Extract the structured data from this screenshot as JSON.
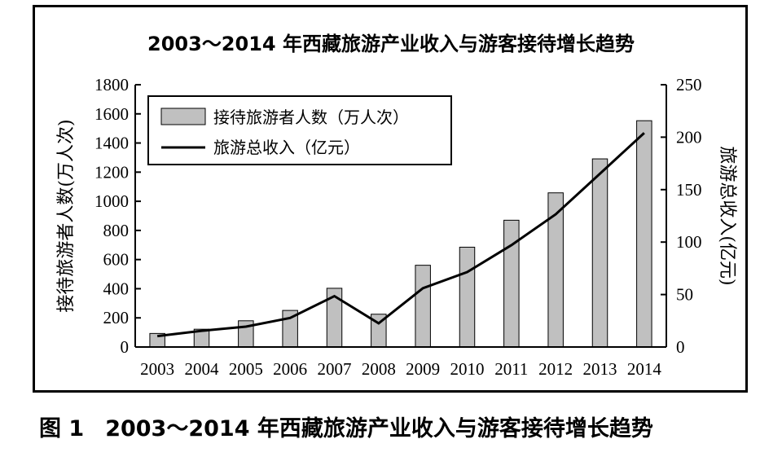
{
  "caption": {
    "figure_number": "图 1",
    "text": "2003～2014 年西藏旅游产业收入与游客接待增长趋势"
  },
  "chart_data": {
    "type": "bar",
    "title": "2003～2014 年西藏旅游产业收入与游客接待增长趋势",
    "categories": [
      "2003",
      "2004",
      "2005",
      "2006",
      "2007",
      "2008",
      "2009",
      "2010",
      "2011",
      "2012",
      "2013",
      "2014"
    ],
    "ylabel": "接待旅游者人数(万人次)",
    "y2label": "旅游总收入(亿元)",
    "ylim": [
      0,
      1800
    ],
    "y2lim": [
      0,
      250
    ],
    "yticks": [
      "0",
      "200",
      "400",
      "600",
      "800",
      "1000",
      "1200",
      "1400",
      "1600",
      "1800"
    ],
    "y2ticks": [
      "0",
      "50",
      "100",
      "150",
      "200",
      "250"
    ],
    "legend_position": "top-left",
    "grid": false,
    "colors": {
      "bar": "#c0c0c0",
      "bar_stroke": "#000000",
      "line": "#000000"
    },
    "series": [
      {
        "name": "接待旅游者人数（万人次）",
        "type": "bar",
        "axis": "left",
        "values": [
          93,
          122,
          180,
          251,
          403,
          225,
          561,
          685,
          870,
          1058,
          1291,
          1553
        ]
      },
      {
        "name": "旅游总收入（亿元）",
        "type": "line",
        "axis": "right",
        "values": [
          10.4,
          15.4,
          19.4,
          27.7,
          48.5,
          22.6,
          56,
          71.4,
          97.1,
          126.5,
          165.2,
          204
        ]
      }
    ]
  }
}
